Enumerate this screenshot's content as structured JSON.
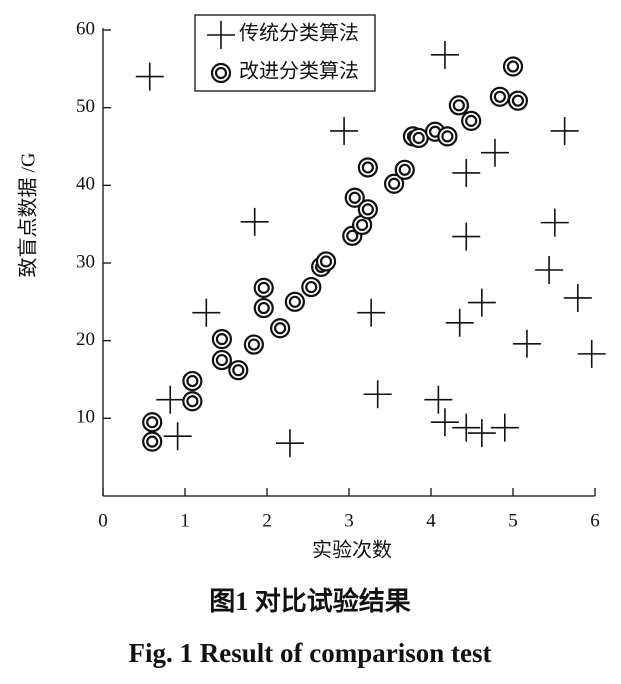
{
  "chart_data": {
    "type": "scatter",
    "x_label": "实验次数",
    "y_label": "致盲点数据 /G",
    "caption": "图1  对比试验结果",
    "caption_en": "Fig. 1  Result of comparison test",
    "xlim": [
      0,
      6
    ],
    "ylim": [
      0,
      60
    ],
    "xticks": [
      0,
      1,
      2,
      3,
      4,
      5,
      6
    ],
    "yticks": [
      10,
      20,
      30,
      40,
      50,
      60
    ],
    "legend": "upper left",
    "series": [
      {
        "name": "传统分类算法",
        "color": "#111111",
        "marker": "plus",
        "x": [
          0.57,
          4.17,
          2.94,
          5.63,
          4.78,
          4.43,
          1.85,
          5.51,
          4.43,
          5.44,
          5.79,
          4.62,
          1.26,
          3.27,
          4.35,
          5.17,
          5.96,
          0.82,
          3.35,
          4.09,
          4.17,
          4.43,
          4.62,
          4.9,
          0.91,
          2.28
        ],
        "values": [
          54.0,
          56.8,
          47.0,
          47.0,
          44.2,
          41.6,
          35.3,
          35.2,
          33.4,
          29.1,
          25.5,
          24.9,
          23.6,
          23.6,
          22.3,
          19.6,
          18.3,
          12.4,
          13.1,
          12.4,
          9.5,
          8.8,
          8.1,
          8.8,
          7.7,
          6.8
        ]
      },
      {
        "name": "改进分类算法",
        "color": "#111111",
        "marker": "double-circle",
        "x": [
          0.6,
          0.6,
          1.09,
          1.09,
          1.45,
          1.45,
          1.65,
          1.84,
          1.96,
          1.96,
          2.16,
          2.34,
          2.54,
          2.66,
          2.72,
          3.04,
          3.07,
          3.16,
          3.23,
          3.23,
          3.55,
          3.68,
          3.78,
          3.85,
          4.05,
          4.2,
          4.34,
          4.49,
          4.84,
          5.0,
          5.06
        ],
        "values": [
          9.5,
          7.0,
          14.8,
          12.2,
          20.2,
          17.5,
          16.2,
          19.5,
          26.8,
          24.2,
          21.6,
          25.0,
          26.9,
          29.5,
          30.2,
          33.5,
          38.4,
          34.9,
          36.9,
          42.3,
          40.2,
          42.0,
          46.3,
          46.1,
          46.9,
          46.3,
          50.3,
          48.3,
          51.4,
          55.3,
          50.9
        ]
      }
    ]
  }
}
